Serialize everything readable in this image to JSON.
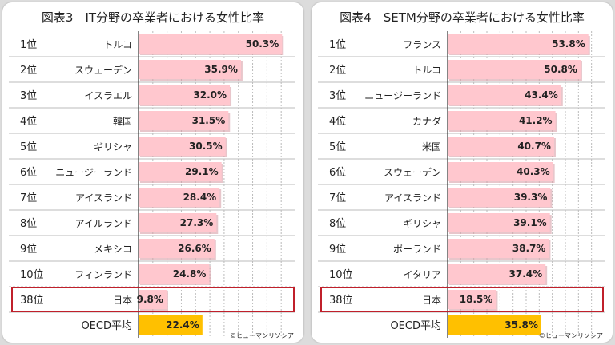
{
  "chart_data": [
    {
      "type": "bar",
      "title": "図表3　IT分野の卒業者における女性比率",
      "ranks": [
        "1位",
        "2位",
        "3位",
        "4位",
        "5位",
        "6位",
        "7位",
        "8位",
        "9位",
        "10位",
        "38位",
        ""
      ],
      "categories": [
        "トルコ",
        "スウェーデン",
        "イスラエル",
        "韓国",
        "ギリシャ",
        "ニュージーランド",
        "アイスランド",
        "アイルランド",
        "メキシコ",
        "フィンランド",
        "日本",
        "OECD平均"
      ],
      "values": [
        50.3,
        35.9,
        32.0,
        31.5,
        30.5,
        29.1,
        28.4,
        27.3,
        26.6,
        24.8,
        9.8,
        22.4
      ],
      "value_labels": [
        "50.3%",
        "35.9%",
        "32.0%",
        "31.5%",
        "30.5%",
        "29.1%",
        "28.4%",
        "27.3%",
        "26.6%",
        "24.8%",
        "9.8%",
        "22.4%"
      ],
      "highlight_index": 10,
      "average_index": 11,
      "xlim": [
        0,
        55
      ],
      "grid": true,
      "copyright": "©ヒューマンリソシア"
    },
    {
      "type": "bar",
      "title": "図表4　SETM分野の卒業者における女性比率",
      "ranks": [
        "1位",
        "2位",
        "3位",
        "4位",
        "5位",
        "6位",
        "7位",
        "8位",
        "9位",
        "10位",
        "38位",
        ""
      ],
      "categories": [
        "フランス",
        "トルコ",
        "ニュージーランド",
        "カナダ",
        "米国",
        "スウェーデン",
        "アイスランド",
        "ギリシャ",
        "ポーランド",
        "イタリア",
        "日本",
        "OECD平均"
      ],
      "values": [
        53.8,
        50.8,
        43.4,
        41.2,
        40.7,
        40.3,
        39.3,
        39.1,
        38.7,
        37.4,
        18.5,
        35.8
      ],
      "value_labels": [
        "53.8%",
        "50.8%",
        "43.4%",
        "41.2%",
        "40.7%",
        "40.3%",
        "39.3%",
        "39.1%",
        "38.7%",
        "37.4%",
        "18.5%",
        "35.8%"
      ],
      "highlight_index": 10,
      "average_index": 11,
      "xlim": [
        0,
        60
      ],
      "grid": true,
      "copyright": "©ヒューマンリソシア"
    }
  ],
  "colors": {
    "bar": "#ffc7ce",
    "bar_shadow": "#d9a0a8",
    "average_bar": "#ffc000",
    "highlight_border": "#c0202b",
    "grid": "#bbbbbb",
    "axis": "#333333"
  }
}
